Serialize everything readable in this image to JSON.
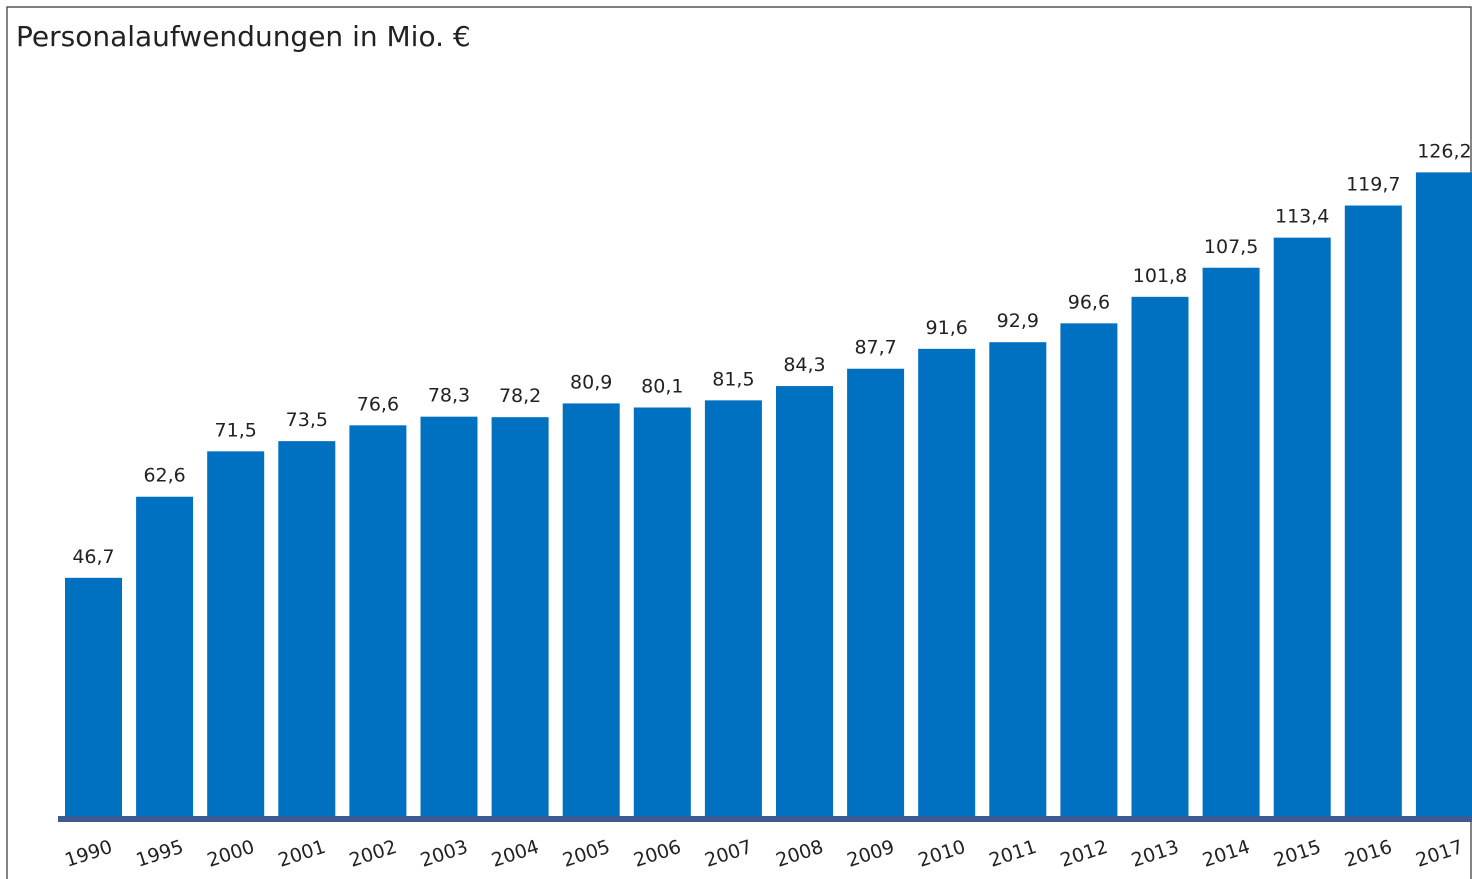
{
  "chart_data": {
    "type": "bar",
    "title": "Personalaufwendungen in Mio. €",
    "categories": [
      "1990",
      "1995",
      "2000",
      "2001",
      "2002",
      "2003",
      "2004",
      "2005",
      "2006",
      "2007",
      "2008",
      "2009",
      "2010",
      "2011",
      "2012",
      "2013",
      "2014",
      "2015",
      "2016",
      "2017"
    ],
    "values": [
      46.7,
      62.6,
      71.5,
      73.5,
      76.6,
      78.3,
      78.2,
      80.9,
      80.1,
      81.5,
      84.3,
      87.7,
      91.6,
      92.9,
      96.6,
      101.8,
      107.5,
      113.4,
      119.7,
      126.2
    ],
    "value_labels": [
      "46,7",
      "62,6",
      "71,5",
      "73,5",
      "76,6",
      "78,3",
      "78,2",
      "80,9",
      "80,1",
      "81,5",
      "84,3",
      "87,7",
      "91,6",
      "92,9",
      "96,6",
      "101,8",
      "107,5",
      "113,4",
      "119,7",
      "126,2"
    ],
    "color": "#0070c0"
  }
}
